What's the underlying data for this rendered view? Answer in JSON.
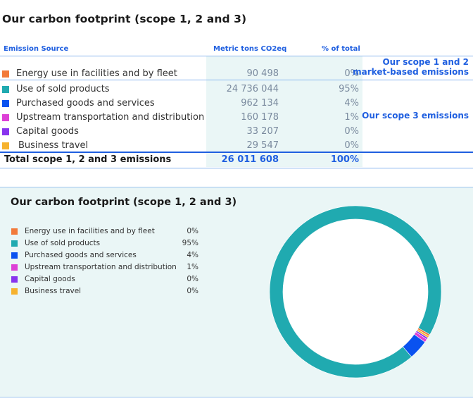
{
  "title": "Our carbon footprint (scope 1, 2 and 3)",
  "table": {
    "headers": {
      "source": "Emission Source",
      "tons": "Metric tons CO2eq",
      "pct": "% of total"
    },
    "total": {
      "label": "Total scope 1, 2 and 3 emissions",
      "tons": "26 011 608",
      "pct": "100%"
    },
    "scope12_note": [
      "Our scope 1 and 2",
      "market-based emissions"
    ],
    "scope3_note": "Our scope 3 emissions"
  },
  "chart_data": {
    "type": "pie",
    "title": "Our carbon footprint (scope 1, 2 and 3)",
    "donut": true,
    "categories": [
      "Energy use in facilities and by fleet",
      "Use of sold products",
      "Purchased goods and services",
      "Upstream transportation and distribution",
      "Capital goods",
      "Business travel"
    ],
    "values": [
      90498,
      24736044,
      962134,
      160178,
      33207,
      29547
    ],
    "values_display": [
      "90 498",
      "24 736 044",
      "962 134",
      "160 178",
      "33 207",
      "29 547"
    ],
    "percent_labels": [
      "0%",
      "95%",
      "4%",
      "1%",
      "0%",
      "0%"
    ],
    "legend_labels": [
      "Energy use in facilities and by fleet",
      "Use of sold products",
      "Purchased goods and services",
      "Upstream transportation and distribution",
      "Capital goods",
      " Business travel"
    ],
    "colors": [
      "#f27a3a",
      "#20aab0",
      "#0a52f0",
      "#dd40d6",
      "#8833ee",
      "#f6b22e"
    ],
    "legend_position": "left"
  }
}
